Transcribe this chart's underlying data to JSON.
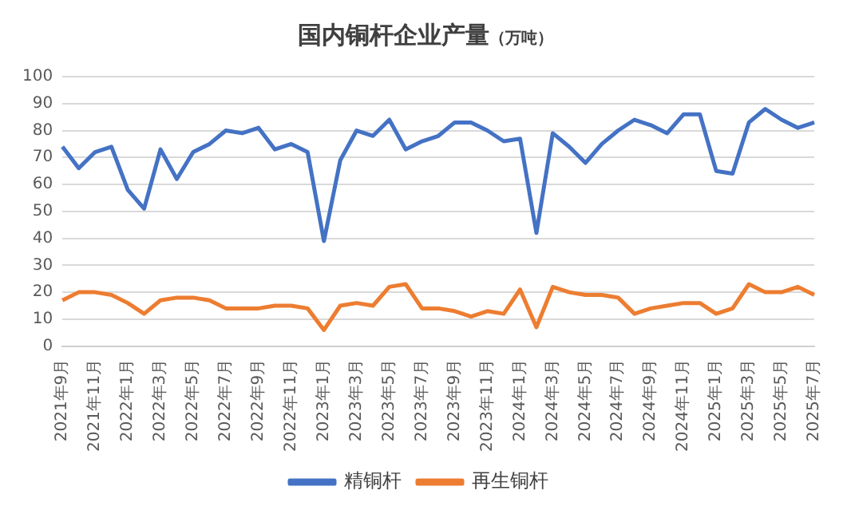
{
  "chart_data": {
    "type": "line",
    "title": "国内铜杆企业产量",
    "subtitle": "（万吨）",
    "categories": [
      "2021年9月",
      null,
      "2021年11月",
      null,
      "2022年1月",
      null,
      "2022年3月",
      null,
      "2022年5月",
      null,
      "2022年7月",
      null,
      "2022年9月",
      null,
      "2022年11月",
      null,
      "2023年1月",
      null,
      "2023年3月",
      null,
      "2023年5月",
      null,
      "2023年7月",
      null,
      "2023年9月",
      null,
      "2023年11月",
      null,
      "2024年1月",
      null,
      "2024年3月",
      null,
      "2024年5月",
      null,
      "2024年7月",
      null,
      "2024年9月",
      null,
      "2024年11月",
      null,
      "2025年1月",
      null,
      "2025年3月",
      null,
      "2025年5月",
      null,
      "2025年7月"
    ],
    "series": [
      {
        "name": "精铜杆",
        "color": "#4472c4",
        "values": [
          74,
          66,
          72,
          74,
          58,
          51,
          73,
          62,
          72,
          75,
          80,
          79,
          81,
          73,
          75,
          72,
          39,
          69,
          80,
          78,
          84,
          73,
          76,
          78,
          83,
          83,
          80,
          76,
          77,
          42,
          79,
          74,
          68,
          75,
          80,
          84,
          82,
          79,
          86,
          86,
          65,
          64,
          83,
          88,
          84,
          81,
          83
        ]
      },
      {
        "name": "再生铜杆",
        "color": "#ed7d31",
        "values": [
          17,
          20,
          20,
          19,
          16,
          12,
          17,
          18,
          18,
          17,
          14,
          14,
          14,
          15,
          15,
          14,
          6,
          15,
          16,
          15,
          22,
          23,
          14,
          14,
          13,
          11,
          13,
          12,
          21,
          7,
          22,
          20,
          19,
          19,
          18,
          12,
          14,
          15,
          16,
          16,
          12,
          14,
          23,
          20,
          20,
          22,
          19
        ]
      }
    ],
    "ylim": [
      0,
      100
    ],
    "yticks": [
      0,
      10,
      20,
      30,
      40,
      50,
      60,
      70,
      80,
      90,
      100
    ],
    "grid": "y",
    "legend": "bottom",
    "marker": "none",
    "line_style": "solid"
  }
}
